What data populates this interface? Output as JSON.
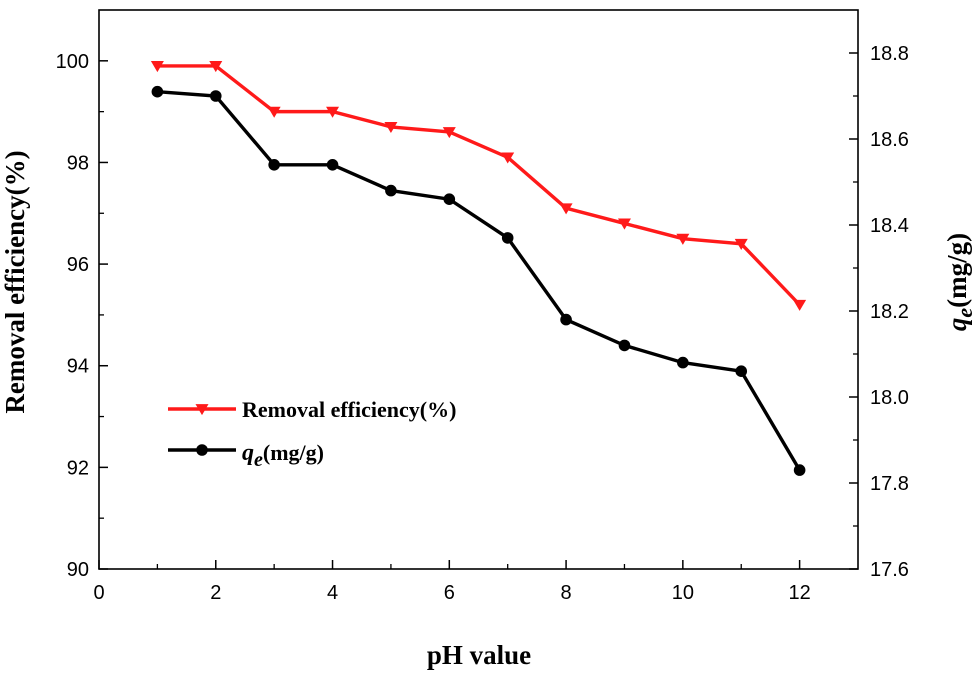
{
  "chart_data": {
    "type": "line",
    "title": "",
    "xlabel": "pH value",
    "ylabel_left": "Removal efficiency(%)",
    "ylabel_right_symbol": "q",
    "ylabel_right_subscript": "e",
    "ylabel_right_unit": "(mg/g)",
    "xlim": [
      0,
      13
    ],
    "ylim_left": [
      90,
      101
    ],
    "ylim_right": [
      17.6,
      18.9
    ],
    "x_ticks": [
      0,
      2,
      4,
      6,
      8,
      10,
      12
    ],
    "x_tick_labels": [
      "0",
      "2",
      "4",
      "6",
      "8",
      "10",
      "12"
    ],
    "y_left_ticks": [
      90,
      92,
      94,
      96,
      98,
      100
    ],
    "y_left_tick_labels": [
      "90",
      "92",
      "94",
      "96",
      "98",
      "100"
    ],
    "y_right_ticks": [
      17.6,
      17.8,
      18.0,
      18.2,
      18.4,
      18.6,
      18.8
    ],
    "y_right_tick_labels": [
      "17.6",
      "17.8",
      "18.0",
      "18.2",
      "18.4",
      "18.6",
      "18.8"
    ],
    "grid": false,
    "legend_position": "lower-left",
    "x": [
      1,
      2,
      3,
      4,
      5,
      6,
      7,
      8,
      9,
      10,
      11,
      12
    ],
    "series": [
      {
        "name": "Removal efficiency(%)",
        "axis": "left",
        "color": "#ff1a1a",
        "marker": "triangle-down",
        "values": [
          99.9,
          99.9,
          99.0,
          99.0,
          98.7,
          98.6,
          98.1,
          97.1,
          96.8,
          96.5,
          96.4,
          95.2
        ]
      },
      {
        "name_symbol": "q",
        "name_subscript": "e",
        "name_unit": "(mg/g)",
        "axis": "right",
        "color": "#000000",
        "marker": "circle",
        "values": [
          18.71,
          18.7,
          18.54,
          18.54,
          18.48,
          18.46,
          18.37,
          18.18,
          18.12,
          18.08,
          18.06,
          17.83
        ]
      }
    ]
  }
}
